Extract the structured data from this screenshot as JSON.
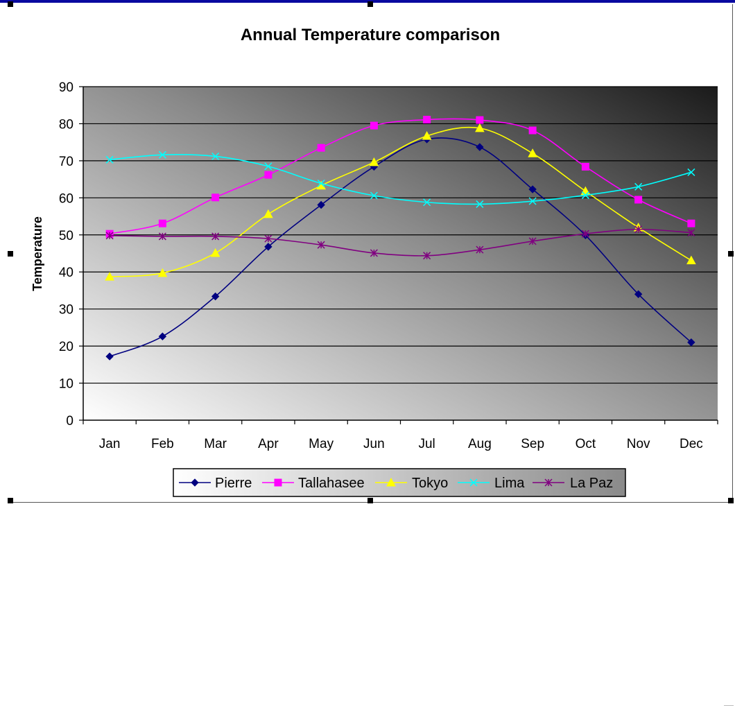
{
  "chart_data": {
    "type": "line",
    "title": "Annual Temperature comparison",
    "xlabel": "",
    "ylabel": "Temperature",
    "ylim": [
      0,
      90
    ],
    "yticks": [
      0,
      10,
      20,
      30,
      40,
      50,
      60,
      70,
      80,
      90
    ],
    "grid": true,
    "legend_position": "bottom",
    "categories": [
      "Jan",
      "Feb",
      "Mar",
      "Apr",
      "May",
      "Jun",
      "Jul",
      "Aug",
      "Sep",
      "Oct",
      "Nov",
      "Dec"
    ],
    "series": [
      {
        "name": "Pierre",
        "color": "#000080",
        "marker": "diamond",
        "values": [
          17.2,
          22.6,
          33.4,
          46.8,
          58.1,
          68.4,
          75.8,
          73.7,
          62.3,
          49.9,
          34.0,
          21.0
        ]
      },
      {
        "name": "Tallahasee",
        "color": "#ff00ff",
        "marker": "square",
        "values": [
          50.3,
          53.1,
          60.1,
          66.2,
          73.5,
          79.5,
          81.1,
          81.0,
          78.2,
          68.4,
          59.5,
          53.1
        ]
      },
      {
        "name": "Tokyo",
        "color": "#ffff00",
        "marker": "triangle",
        "values": [
          38.7,
          39.7,
          45.1,
          55.6,
          63.3,
          69.6,
          76.7,
          78.8,
          72.0,
          61.8,
          52.0,
          43.1
        ]
      },
      {
        "name": "Lima",
        "color": "#00ffff",
        "marker": "x",
        "values": [
          70.3,
          71.6,
          71.2,
          68.5,
          63.9,
          60.6,
          58.8,
          58.3,
          59.1,
          60.7,
          63.0,
          66.9
        ]
      },
      {
        "name": "La Paz",
        "color": "#800080",
        "marker": "star",
        "values": [
          49.8,
          49.6,
          49.6,
          49.0,
          47.3,
          45.1,
          44.4,
          46.0,
          48.3,
          50.3,
          51.5,
          50.6
        ]
      }
    ]
  }
}
